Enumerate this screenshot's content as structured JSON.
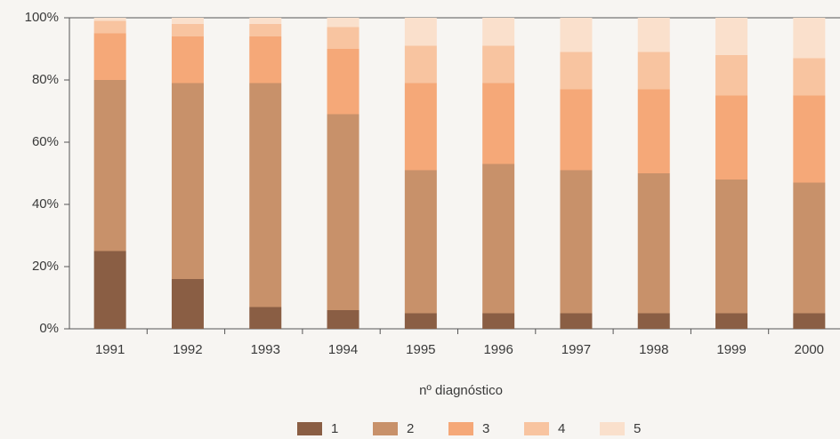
{
  "chart_data": {
    "type": "stacked-bar-percent",
    "categories": [
      "1991",
      "1992",
      "1993",
      "1994",
      "1995",
      "1996",
      "1997",
      "1998",
      "1999",
      "2000"
    ],
    "series": [
      {
        "name": "1",
        "color": "#8a5e44",
        "values": [
          25,
          16,
          7,
          6,
          5,
          5,
          5,
          5,
          5,
          5
        ]
      },
      {
        "name": "2",
        "color": "#c8916a",
        "values": [
          55,
          63,
          72,
          63,
          46,
          48,
          46,
          45,
          43,
          42
        ]
      },
      {
        "name": "3",
        "color": "#f5a878",
        "values": [
          15,
          15,
          15,
          21,
          28,
          26,
          26,
          27,
          27,
          28
        ]
      },
      {
        "name": "4",
        "color": "#f8c4a0",
        "values": [
          4,
          4,
          4,
          7,
          12,
          12,
          12,
          12,
          13,
          12
        ]
      },
      {
        "name": "5",
        "color": "#fae0cc",
        "values": [
          1,
          2,
          2,
          3,
          9,
          9,
          11,
          11,
          12,
          13
        ]
      }
    ],
    "legend_title": "nº diagnóstico",
    "ylim": [
      0,
      100
    ],
    "yticks": [
      {
        "value": 0,
        "label": "0%"
      },
      {
        "value": 20,
        "label": "20%"
      },
      {
        "value": 40,
        "label": "40%"
      },
      {
        "value": 60,
        "label": "60%"
      },
      {
        "value": 80,
        "label": "80%"
      },
      {
        "value": 100,
        "label": "100%"
      }
    ]
  }
}
